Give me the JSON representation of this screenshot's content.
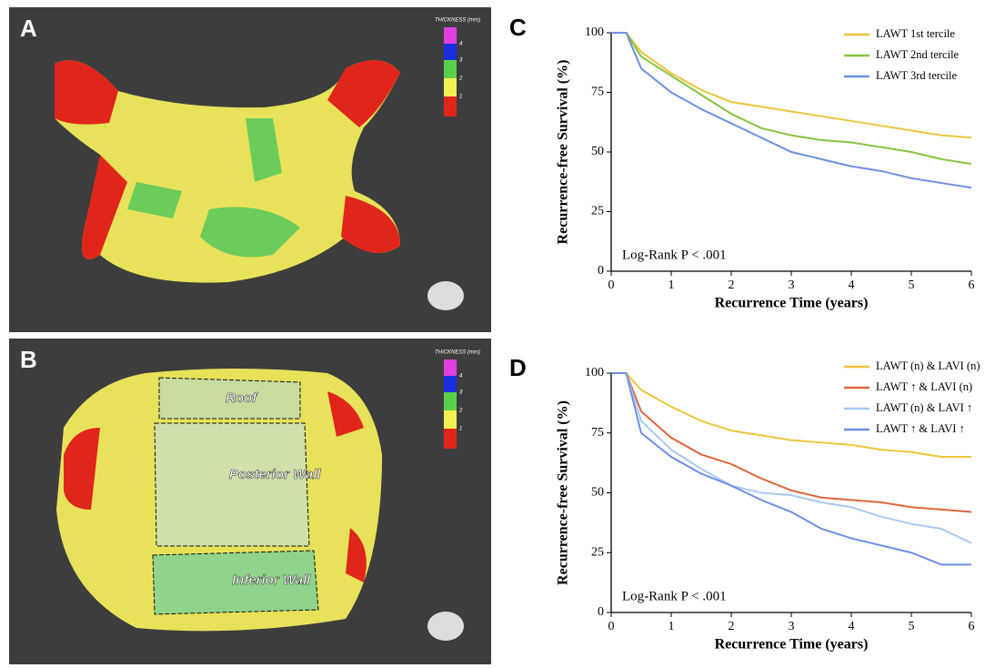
{
  "panels": [
    {
      "label": "A",
      "legend_title": "THICKNESS (mm)",
      "legend_ticks": [
        "4",
        "3",
        "2",
        "1"
      ]
    },
    {
      "label": "B",
      "legend_title": "THICKNESS (mm)",
      "legend_ticks": [
        "4",
        "3",
        "2",
        "1"
      ],
      "regions": [
        "Roof",
        "Posterior Wall",
        "Inferior Wall"
      ]
    }
  ],
  "chart_data": [
    {
      "type": "line",
      "panel_label": "C",
      "x_label": "Recurrence Time (years)",
      "y_label": "Recurrence-free Survival (%)",
      "annotation": "Log-Rank P < .001",
      "legend": "upper right",
      "xlim": [
        0,
        6
      ],
      "ylim": [
        0,
        100
      ],
      "xticks": [
        0,
        1,
        2,
        3,
        4,
        5,
        6
      ],
      "yticks": [
        0,
        25,
        50,
        75,
        100
      ],
      "x": [
        0,
        0.25,
        0.5,
        1,
        1.5,
        2,
        2.5,
        3,
        3.5,
        4,
        4.5,
        5,
        5.5,
        6
      ],
      "series": [
        {
          "name": "LAWT 1st tercile",
          "color": "#ecc63e",
          "values": [
            100,
            100,
            92,
            83,
            76,
            71,
            69,
            67,
            65,
            63,
            61,
            59,
            57,
            56
          ]
        },
        {
          "name": "LAWT 2nd tercile",
          "color": "#86c440",
          "values": [
            100,
            100,
            90,
            82,
            74,
            66,
            60,
            57,
            55,
            54,
            52,
            50,
            47,
            45
          ]
        },
        {
          "name": "LAWT 3rd tercile",
          "color": "#6f8fe6",
          "values": [
            100,
            100,
            85,
            75,
            68,
            62,
            56,
            50,
            47,
            44,
            42,
            39,
            37,
            35
          ]
        }
      ]
    },
    {
      "type": "line",
      "panel_label": "D",
      "x_label": "Recurrence Time (years)",
      "y_label": "Recurrence-free Survival (%)",
      "annotation": "Log-Rank P < .001",
      "legend": "upper right",
      "xlim": [
        0,
        6
      ],
      "ylim": [
        0,
        100
      ],
      "xticks": [
        0,
        1,
        2,
        3,
        4,
        5,
        6
      ],
      "yticks": [
        0,
        25,
        50,
        75,
        100
      ],
      "x": [
        0,
        0.25,
        0.5,
        1,
        1.5,
        2,
        2.5,
        3,
        3.5,
        4,
        4.5,
        5,
        5.5,
        6
      ],
      "series": [
        {
          "name": "LAWT (n) & LAVI (n)",
          "color": "#ecc63e",
          "values": [
            100,
            100,
            93,
            86,
            80,
            76,
            74,
            72,
            71,
            70,
            68,
            67,
            65,
            65
          ]
        },
        {
          "name": "LAWT ↑ & LAVI (n)",
          "color": "#e0663e",
          "values": [
            100,
            100,
            84,
            73,
            66,
            62,
            56,
            51,
            48,
            47,
            46,
            44,
            43,
            42
          ]
        },
        {
          "name": "LAWT (n) & LAVI ↑",
          "color": "#a9c9f2",
          "values": [
            100,
            100,
            80,
            68,
            60,
            53,
            50,
            49,
            46,
            44,
            40,
            37,
            35,
            29
          ]
        },
        {
          "name": "LAWT ↑ & LAVI ↑",
          "color": "#6f8fe6",
          "values": [
            100,
            100,
            75,
            65,
            58,
            53,
            47,
            42,
            35,
            31,
            28,
            25,
            20,
            20
          ]
        }
      ]
    }
  ]
}
